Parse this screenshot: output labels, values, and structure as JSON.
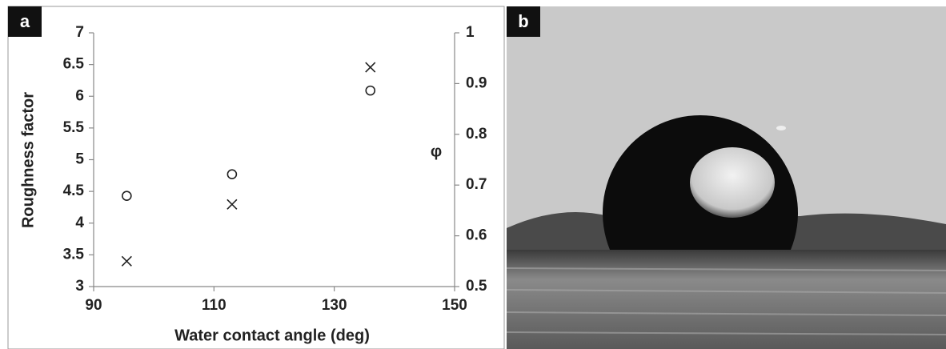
{
  "chart_data": {
    "type": "scatter",
    "panel_label": "a",
    "x_label": "Water contact angle (deg)",
    "y_label": "Roughness factor",
    "y2_label": "φ",
    "xlim": [
      90,
      150
    ],
    "xticks": [
      90,
      110,
      130,
      150
    ],
    "ylim": [
      3,
      7
    ],
    "yticks": [
      3,
      3.5,
      4,
      4.5,
      5,
      5.5,
      6,
      6.5,
      7
    ],
    "y2lim": [
      0.5,
      1
    ],
    "y2ticks": [
      0.5,
      0.6,
      0.7,
      0.8,
      0.9,
      1
    ],
    "series": [
      {
        "marker": "circle",
        "color": "#222222",
        "x": [
          95.5,
          113,
          136
        ],
        "values": [
          4.43,
          4.77,
          6.09
        ]
      },
      {
        "marker": "cross",
        "color": "#222222",
        "axis": "y2",
        "x": [
          95.5,
          113,
          136
        ],
        "values": [
          0.55,
          0.662,
          0.932
        ]
      }
    ]
  },
  "panel_b": {
    "label": "b"
  }
}
